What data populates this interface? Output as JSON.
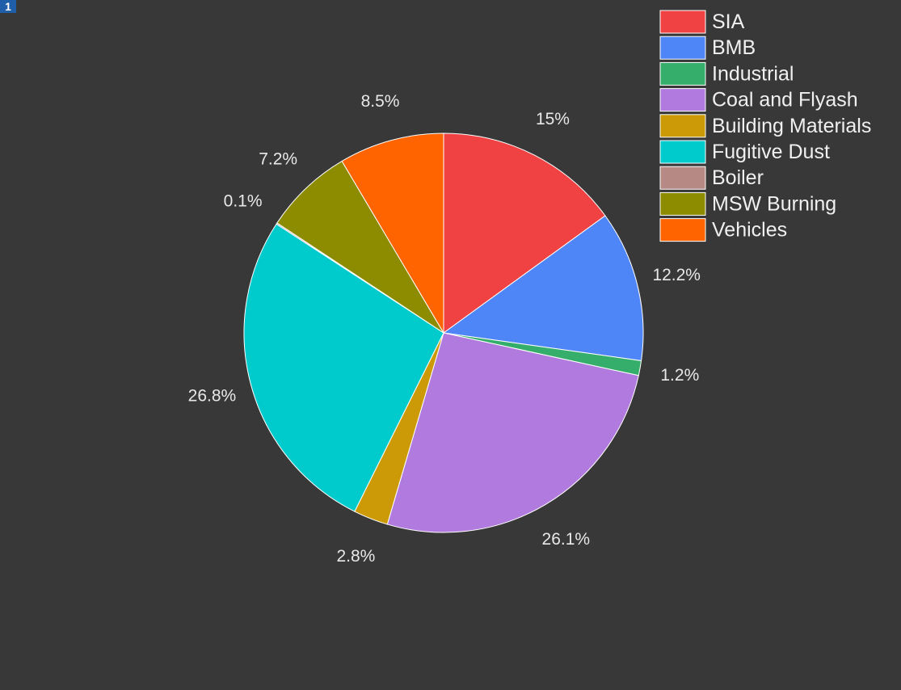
{
  "panel_badge": "1",
  "chart_data": {
    "type": "pie",
    "title": "",
    "legend_position": "top-right",
    "slices": [
      {
        "name": "SIA",
        "value": 15,
        "label": "15%",
        "color": "#f04143"
      },
      {
        "name": "BMB",
        "value": 12.2,
        "label": "12.2%",
        "color": "#4f86f7"
      },
      {
        "name": "Industrial",
        "value": 1.2,
        "label": "1.2%",
        "color": "#36ae6b"
      },
      {
        "name": "Coal and Flyash",
        "value": 26.1,
        "label": "26.1%",
        "color": "#b07ade"
      },
      {
        "name": "Building Materials",
        "value": 2.8,
        "label": "2.8%",
        "color": "#cc9a06"
      },
      {
        "name": "Fugitive Dust",
        "value": 26.8,
        "label": "26.8%",
        "color": "#00cbcc"
      },
      {
        "name": "Boiler",
        "value": 0.1,
        "label": "0.1%",
        "color": "#b78985"
      },
      {
        "name": "MSW Burning",
        "value": 7.2,
        "label": "7.2%",
        "color": "#8d8c00"
      },
      {
        "name": "Vehicles",
        "value": 8.5,
        "label": "8.5%",
        "color": "#ff6400"
      }
    ]
  }
}
